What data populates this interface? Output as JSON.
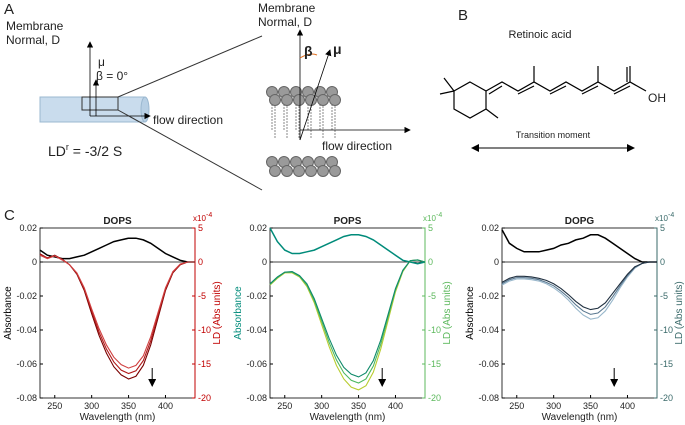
{
  "panel_a": {
    "label": "A",
    "normal_label": [
      "Membrane",
      "Normal, D"
    ],
    "mu": "μ",
    "beta_zero": "β = 0°",
    "flow": "flow direction",
    "ld_base": "LD",
    "ld_sup": "r",
    "ld_rest": " = -3/2 S",
    "zoom_normal_label": [
      "Membrane",
      "Normal, D"
    ],
    "zoom_beta": "β",
    "zoom_mu": "μ",
    "zoom_flow": "flow direction"
  },
  "panel_b": {
    "label": "B",
    "title": "Retinoic acid",
    "oh": "OH",
    "moment": "Transition moment"
  },
  "panel_c_label": "C",
  "chart_data": [
    {
      "type": "line",
      "title": "DOPS",
      "xlabel": "Wavelength (nm)",
      "ylabel": "Absorbance",
      "y2label": "LD (Abs units)",
      "y2_multiplier": "x10",
      "y2_exponent": "-4",
      "y_color": "#000000",
      "y2_color": "#c00000",
      "xlim": [
        230,
        440
      ],
      "xticks": [
        250,
        300,
        350,
        400
      ],
      "ylim": [
        -0.08,
        0.02
      ],
      "yticks": [
        -0.08,
        -0.06,
        -0.04,
        -0.02,
        0,
        0.02
      ],
      "y2lim": [
        -20,
        5
      ],
      "y2ticks": [
        -20,
        -15,
        -10,
        -5,
        0,
        5
      ],
      "x": [
        230,
        240,
        250,
        260,
        270,
        280,
        290,
        300,
        310,
        320,
        330,
        340,
        350,
        360,
        370,
        380,
        390,
        400,
        410,
        420,
        430,
        440
      ],
      "series": [
        {
          "color": "#000000",
          "axis": "y",
          "values": [
            0.007,
            0.004,
            0.003,
            0.002,
            0.002,
            0.003,
            0.004,
            0.006,
            0.008,
            0.01,
            0.012,
            0.013,
            0.014,
            0.014,
            0.013,
            0.011,
            0.008,
            0.005,
            0.003,
            0.001,
            0.0,
            0.0
          ]
        },
        {
          "color": "#7a0000",
          "axis": "y2",
          "values": [
            1.2,
            0.6,
            1.0,
            0.4,
            -0.4,
            -1.8,
            -4.2,
            -7.6,
            -10.8,
            -13.4,
            -15.4,
            -16.6,
            -17.2,
            -16.8,
            -15.2,
            -12.2,
            -8.2,
            -4.2,
            -1.6,
            -0.4,
            0,
            0
          ]
        },
        {
          "color": "#b01818",
          "axis": "y2",
          "values": [
            1.1,
            0.6,
            0.9,
            0.4,
            -0.4,
            -1.7,
            -4.0,
            -7.2,
            -10.3,
            -12.8,
            -14.7,
            -15.9,
            -16.4,
            -16.0,
            -14.5,
            -11.6,
            -7.8,
            -4.0,
            -1.5,
            -0.4,
            0,
            0
          ]
        },
        {
          "color": "#d04040",
          "axis": "y2",
          "values": [
            1.0,
            0.5,
            0.9,
            0.3,
            -0.4,
            -1.6,
            -3.8,
            -6.9,
            -9.8,
            -12.2,
            -14.0,
            -15.1,
            -15.6,
            -15.2,
            -13.8,
            -11.0,
            -7.4,
            -3.8,
            -1.4,
            -0.3,
            0,
            0
          ]
        }
      ]
    },
    {
      "type": "line",
      "title": "POPS",
      "xlabel": "Wavelength (nm)",
      "ylabel": "Absorbance",
      "y2label": "LD (Abs units)",
      "y2_multiplier": "x10",
      "y2_exponent": "-4",
      "y_color": "#008b7a",
      "y2_color": "#5cb85c",
      "xlim": [
        230,
        440
      ],
      "xticks": [
        250,
        300,
        350,
        400
      ],
      "ylim": [
        -0.08,
        0.02
      ],
      "yticks": [
        -0.08,
        -0.06,
        -0.04,
        -0.02,
        0,
        0.02
      ],
      "y2lim": [
        -20,
        5
      ],
      "y2ticks": [
        -20,
        -15,
        -10,
        -5,
        0,
        5
      ],
      "x": [
        230,
        240,
        250,
        260,
        270,
        280,
        290,
        300,
        310,
        320,
        330,
        340,
        350,
        360,
        370,
        380,
        390,
        400,
        410,
        420,
        430,
        440
      ],
      "series": [
        {
          "color": "#008b7a",
          "axis": "y",
          "values": [
            0.02,
            0.012,
            0.007,
            0.005,
            0.005,
            0.006,
            0.007,
            0.009,
            0.011,
            0.013,
            0.015,
            0.016,
            0.016,
            0.015,
            0.013,
            0.01,
            0.007,
            0.004,
            0.001,
            0.0,
            -0.001,
            0.0
          ]
        },
        {
          "color": "#b8cc30",
          "axis": "y2",
          "values": [
            -3.4,
            -2.4,
            -1.6,
            -1.6,
            -2.2,
            -3.6,
            -6.0,
            -9.2,
            -12.4,
            -15.2,
            -17.2,
            -18.4,
            -18.8,
            -18.2,
            -16.2,
            -12.8,
            -8.6,
            -4.4,
            -1.4,
            0.2,
            0.3,
            0
          ]
        },
        {
          "color": "#4cb860",
          "axis": "y2",
          "values": [
            -3.3,
            -2.3,
            -1.5,
            -1.5,
            -2.1,
            -3.4,
            -5.7,
            -8.7,
            -11.8,
            -14.4,
            -16.3,
            -17.4,
            -17.8,
            -17.2,
            -15.3,
            -12.1,
            -8.1,
            -4.1,
            -1.3,
            0.2,
            0.3,
            0
          ]
        },
        {
          "color": "#0f8a6a",
          "axis": "y2",
          "values": [
            -3.2,
            -2.2,
            -1.5,
            -1.4,
            -2.0,
            -3.2,
            -5.4,
            -8.3,
            -11.2,
            -13.7,
            -15.5,
            -16.5,
            -16.9,
            -16.3,
            -14.5,
            -11.5,
            -7.7,
            -3.9,
            -1.2,
            0.2,
            0.3,
            0
          ]
        }
      ]
    },
    {
      "type": "line",
      "title": "DOPG",
      "xlabel": "Wavelength (nm)",
      "ylabel": "Absorbance",
      "y2label": "LD (Abs units)",
      "y2_multiplier": "x10",
      "y2_exponent": "-4",
      "y_color": "#000000",
      "y2_color": "#3a6a6a",
      "xlim": [
        230,
        440
      ],
      "xticks": [
        250,
        300,
        350,
        400
      ],
      "ylim": [
        -0.08,
        0.02
      ],
      "yticks": [
        -0.08,
        -0.06,
        -0.04,
        -0.02,
        0,
        0.02
      ],
      "y2lim": [
        -20,
        5
      ],
      "y2ticks": [
        -20,
        -15,
        -10,
        -5,
        0,
        5
      ],
      "x": [
        230,
        240,
        250,
        260,
        270,
        280,
        290,
        300,
        310,
        320,
        330,
        340,
        350,
        360,
        370,
        380,
        390,
        400,
        410,
        420,
        430,
        440
      ],
      "series": [
        {
          "color": "#000000",
          "axis": "y",
          "values": [
            0.019,
            0.011,
            0.008,
            0.006,
            0.006,
            0.006,
            0.007,
            0.008,
            0.01,
            0.011,
            0.013,
            0.014,
            0.016,
            0.016,
            0.014,
            0.011,
            0.008,
            0.005,
            0.002,
            0.0,
            0.0,
            0.0
          ]
        },
        {
          "color": "#9ab8cc",
          "axis": "y2",
          "values": [
            -3.4,
            -2.8,
            -2.5,
            -2.5,
            -2.6,
            -2.8,
            -3.2,
            -3.8,
            -4.6,
            -5.6,
            -6.8,
            -7.8,
            -8.4,
            -8.2,
            -7.2,
            -5.6,
            -3.8,
            -2.2,
            -0.9,
            -0.2,
            0,
            0
          ]
        },
        {
          "color": "#5a7890",
          "axis": "y2",
          "values": [
            -3.2,
            -2.6,
            -2.3,
            -2.3,
            -2.4,
            -2.6,
            -3.0,
            -3.5,
            -4.3,
            -5.2,
            -6.3,
            -7.2,
            -7.7,
            -7.5,
            -6.6,
            -5.1,
            -3.5,
            -2.0,
            -0.8,
            -0.2,
            0,
            0
          ]
        },
        {
          "color": "#203040",
          "axis": "y2",
          "values": [
            -3.0,
            -2.4,
            -2.1,
            -2.1,
            -2.2,
            -2.4,
            -2.7,
            -3.2,
            -3.9,
            -4.8,
            -5.8,
            -6.6,
            -7.0,
            -6.8,
            -6.0,
            -4.6,
            -3.2,
            -1.8,
            -0.7,
            -0.2,
            0,
            0
          ]
        }
      ]
    }
  ]
}
